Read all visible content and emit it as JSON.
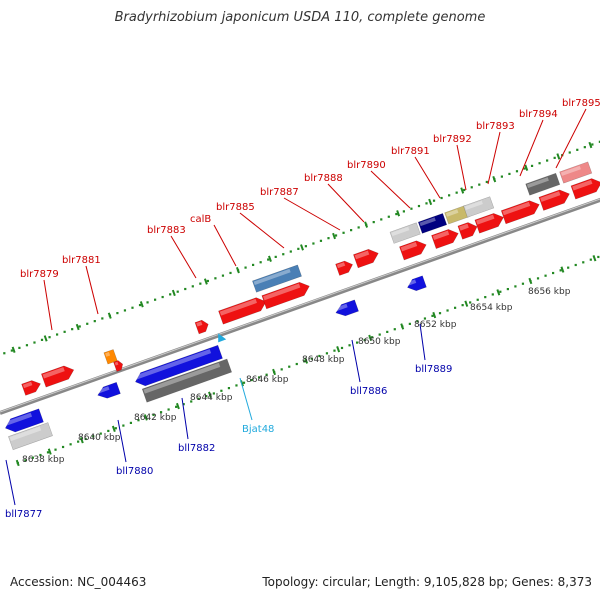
{
  "title": "Bradyrhizobium japonicum USDA 110, complete genome",
  "accession": "Accession: NC_004463",
  "topology": "Topology: circular; Length: 9,105,828 bp; Genes: 8,373",
  "colors": {
    "forward_gene": "#ee1111",
    "reverse_gene": "#1111dd",
    "forward_label": "#cc0000",
    "reverse_label": "#0000aa",
    "rna_label": "#22aadd",
    "backbone": "#888888",
    "tick": "#228822"
  },
  "scale": {
    "unit": "kbp",
    "ticks": [
      {
        "value": 8638,
        "label": "8638 kbp"
      },
      {
        "value": 8640,
        "label": "8640 kbp"
      },
      {
        "value": 8642,
        "label": "8642 kbp"
      },
      {
        "value": 8644,
        "label": "8644 kbp"
      },
      {
        "value": 8646,
        "label": "8646 kbp"
      },
      {
        "value": 8648,
        "label": "8648 kbp"
      },
      {
        "value": 8650,
        "label": "8650 kbp"
      },
      {
        "value": 8652,
        "label": "8652 kbp"
      },
      {
        "value": 8654,
        "label": "8654 kbp"
      },
      {
        "value": 8656,
        "label": "8656 kbp"
      }
    ]
  },
  "genes": [
    {
      "name": "bll7877",
      "strand": "reverse"
    },
    {
      "name": "blr7879",
      "strand": "forward"
    },
    {
      "name": "bll7880",
      "strand": "reverse"
    },
    {
      "name": "blr7881",
      "strand": "forward"
    },
    {
      "name": "bll7882",
      "strand": "reverse"
    },
    {
      "name": "blr7883",
      "strand": "forward"
    },
    {
      "name": "calB",
      "strand": "forward"
    },
    {
      "name": "blr7885",
      "strand": "forward"
    },
    {
      "name": "Bjat48",
      "strand": "reverse",
      "type": "tRNA"
    },
    {
      "name": "bll7886",
      "strand": "reverse"
    },
    {
      "name": "blr7887",
      "strand": "forward"
    },
    {
      "name": "blr7888",
      "strand": "forward"
    },
    {
      "name": "bll7889",
      "strand": "reverse"
    },
    {
      "name": "blr7890",
      "strand": "forward"
    },
    {
      "name": "blr7891",
      "strand": "forward"
    },
    {
      "name": "blr7892",
      "strand": "forward"
    },
    {
      "name": "blr7893",
      "strand": "forward"
    },
    {
      "name": "blr7894",
      "strand": "forward"
    },
    {
      "name": "blr7895",
      "strand": "forward"
    }
  ]
}
